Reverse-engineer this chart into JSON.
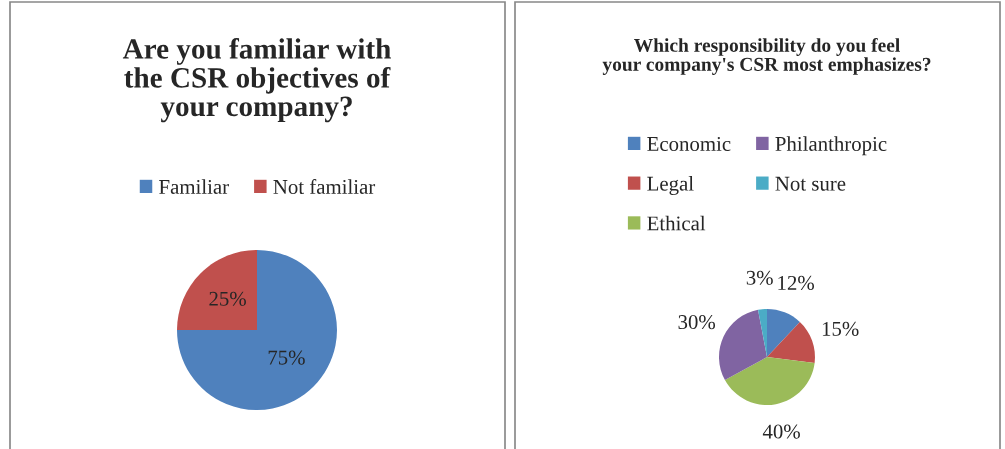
{
  "chart_data": [
    {
      "type": "pie",
      "title": "Are you familiar with the CSR objectives of your company?",
      "categories": [
        "Familiar",
        "Not familiar"
      ],
      "values": [
        75,
        25
      ],
      "colors": [
        "#4f81bd",
        "#c0504d"
      ],
      "value_labels": [
        "75%",
        "25%"
      ],
      "legend": "top"
    },
    {
      "type": "pie",
      "title": "Which responsibility do you feel your company's CSR most emphasizes?",
      "categories": [
        "Economic",
        "Legal",
        "Ethical",
        "Philanthropic",
        "Not sure"
      ],
      "values": [
        12,
        15,
        40,
        30,
        3
      ],
      "colors": [
        "#4f81bd",
        "#c0504d",
        "#9bbb59",
        "#8064a2",
        "#4bacc6"
      ],
      "value_labels": [
        "12%",
        "15%",
        "40%",
        "30%",
        "3%"
      ],
      "legend": "top"
    }
  ]
}
